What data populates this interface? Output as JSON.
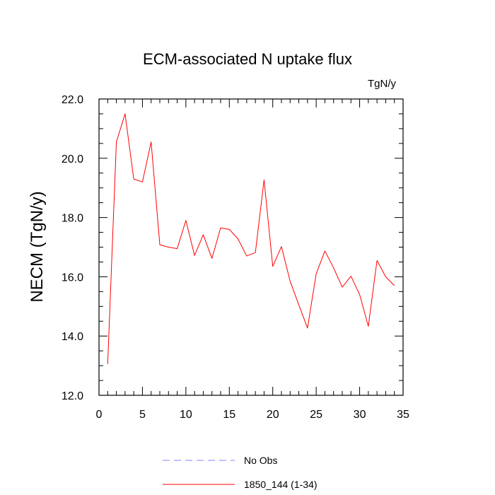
{
  "chart_data": {
    "type": "line",
    "title": "ECM-associated N uptake flux",
    "units": "TgN/y",
    "ylabel": "NECM  (TgN/y)",
    "xlabel": "",
    "xlim": [
      0,
      35
    ],
    "ylim": [
      12,
      22
    ],
    "xticks": [
      0,
      5,
      10,
      15,
      20,
      25,
      30,
      35
    ],
    "xtick_labels": [
      "0",
      "5",
      "10",
      "15",
      "20",
      "25",
      "30",
      "35"
    ],
    "yticks": [
      12,
      14,
      16,
      18,
      20,
      22
    ],
    "ytick_labels": [
      "12.0",
      "14.0",
      "16.0",
      "18.0",
      "20.0",
      "22.0"
    ],
    "grid": false,
    "legend_position": "bottom",
    "series": [
      {
        "name": "1850_144 (1-34)",
        "color": "#ff0000",
        "style": "solid",
        "x": [
          1,
          2,
          3,
          4,
          5,
          6,
          7,
          8,
          9,
          10,
          11,
          12,
          13,
          14,
          15,
          16,
          17,
          18,
          19,
          20,
          21,
          22,
          23,
          24,
          25,
          26,
          27,
          28,
          29,
          30,
          31,
          32,
          33,
          34
        ],
        "values": [
          13.05,
          20.55,
          21.5,
          19.3,
          19.2,
          20.55,
          17.08,
          17.0,
          16.95,
          17.9,
          16.72,
          17.42,
          16.62,
          17.65,
          17.6,
          17.28,
          16.7,
          16.82,
          19.27,
          16.35,
          17.02,
          15.85,
          15.05,
          14.27,
          16.1,
          16.87,
          16.3,
          15.65,
          16.02,
          15.4,
          14.33,
          16.55,
          16.0,
          15.7
        ]
      },
      {
        "name": "No Obs",
        "color": "#8080ff",
        "style": "dashed",
        "x": [],
        "values": []
      }
    ]
  }
}
